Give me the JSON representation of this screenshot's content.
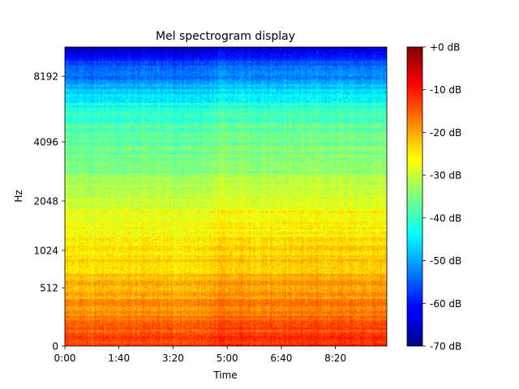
{
  "chart_data": {
    "type": "heatmap",
    "title": "Mel spectrogram display",
    "xlabel": "Time",
    "ylabel": "Hz",
    "x_ticks": [
      "0:00",
      "1:40",
      "3:20",
      "5:00",
      "6:40",
      "8:20"
    ],
    "x_tick_seconds": [
      0,
      100,
      200,
      300,
      400,
      500
    ],
    "xlim_seconds": [
      0,
      595
    ],
    "y_scale": "mel",
    "y_ticks": [
      "0",
      "512",
      "1024",
      "2048",
      "4096",
      "8192"
    ],
    "y_tick_hz": [
      0,
      512,
      1024,
      2048,
      4096,
      8192
    ],
    "ylim_hz": [
      0,
      11025
    ],
    "colormap": "jet",
    "colorbar": {
      "range_db": [
        -70,
        0
      ],
      "ticks": [
        "+0 dB",
        "-10 dB",
        "-20 dB",
        "-30 dB",
        "-40 dB",
        "-50 dB",
        "-60 dB",
        "-70 dB"
      ],
      "tick_db": [
        0,
        -10,
        -20,
        -30,
        -40,
        -50,
        -60,
        -70
      ]
    },
    "level_profile": {
      "hz": [
        0,
        100,
        250,
        512,
        800,
        1024,
        1500,
        2048,
        3000,
        4096,
        6000,
        8192,
        10000,
        11025
      ],
      "db": [
        -13,
        -15,
        -18,
        -21,
        -24,
        -25,
        -27,
        -29,
        -35,
        -37,
        -42,
        -53,
        -60,
        -68
      ]
    }
  }
}
